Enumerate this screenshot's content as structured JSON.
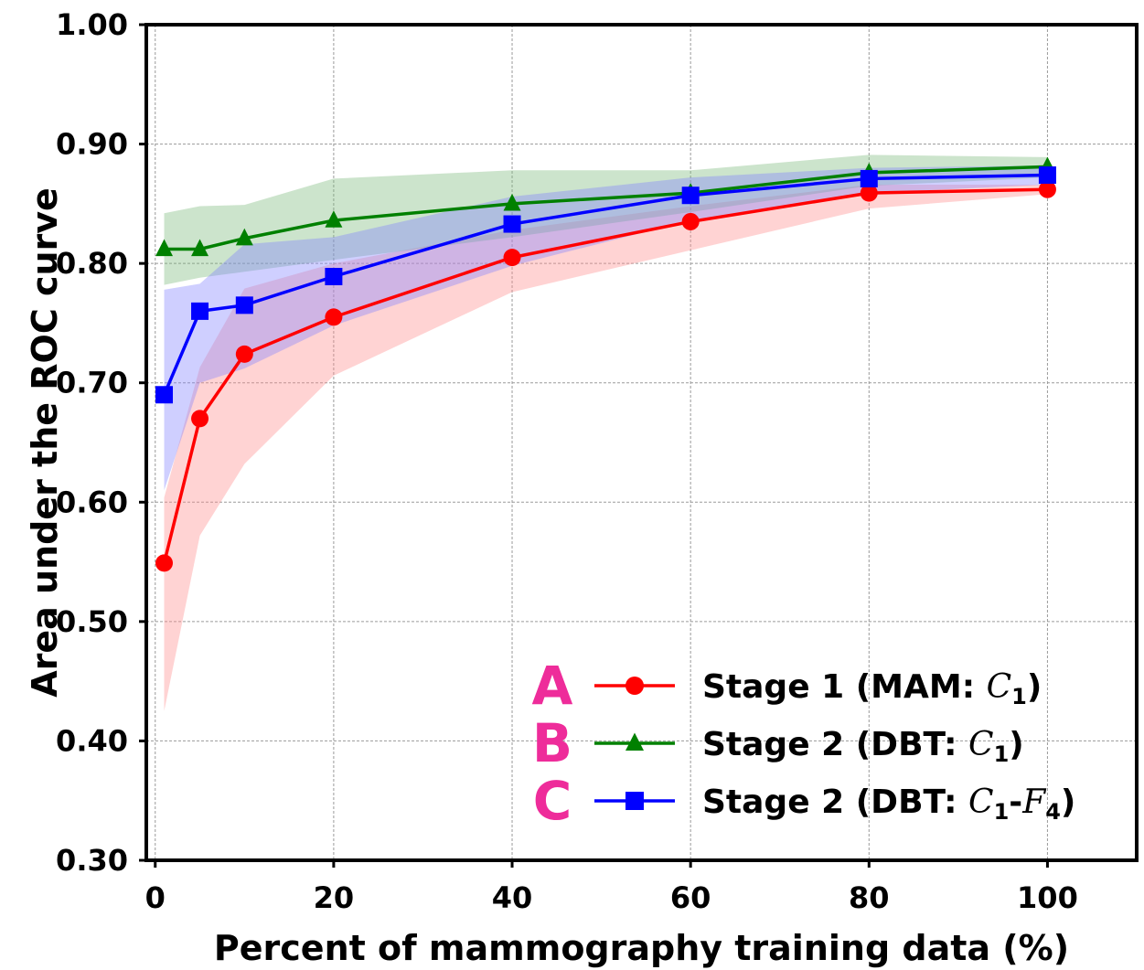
{
  "chart_data": {
    "type": "line",
    "x": [
      1,
      5,
      10,
      20,
      40,
      60,
      80,
      100
    ],
    "series": [
      {
        "name": "Stage 1 (MAM: C1)",
        "letter": "A",
        "color": "#ff0000",
        "band_color": "#ff8c8c",
        "marker": "circle",
        "values": [
          0.549,
          0.67,
          0.724,
          0.755,
          0.805,
          0.835,
          0.859,
          0.862
        ],
        "lower": [
          0.425,
          0.572,
          0.632,
          0.706,
          0.776,
          0.811,
          0.846,
          0.858
        ],
        "upper": [
          0.604,
          0.713,
          0.779,
          0.8,
          0.828,
          0.848,
          0.866,
          0.866
        ]
      },
      {
        "name": "Stage 2 (DBT: C1)",
        "letter": "B",
        "color": "#008000",
        "band_color": "#7ab97a",
        "marker": "triangle",
        "values": [
          0.812,
          0.812,
          0.821,
          0.836,
          0.85,
          0.859,
          0.876,
          0.881
        ],
        "lower": [
          0.782,
          0.788,
          0.793,
          0.803,
          0.822,
          0.843,
          0.865,
          0.872
        ],
        "upper": [
          0.842,
          0.848,
          0.849,
          0.871,
          0.878,
          0.878,
          0.891,
          0.889
        ]
      },
      {
        "name": "Stage 2 (DBT: C1-F4)",
        "letter": "C",
        "color": "#0000ff",
        "band_color": "#8080ff",
        "marker": "square",
        "values": [
          0.69,
          0.76,
          0.765,
          0.789,
          0.833,
          0.857,
          0.871,
          0.874
        ],
        "lower": [
          0.61,
          0.7,
          0.712,
          0.748,
          0.798,
          0.836,
          0.859,
          0.866
        ],
        "upper": [
          0.778,
          0.783,
          0.816,
          0.822,
          0.856,
          0.872,
          0.88,
          0.882
        ]
      }
    ],
    "xlabel": "Percent of mammography training data (%)",
    "ylabel": "Area under the ROC curve",
    "xlim": [
      -1,
      110
    ],
    "ylim": [
      0.3,
      1.0
    ],
    "xticks": [
      0,
      20,
      40,
      60,
      80,
      100
    ],
    "yticks": [
      0.3,
      0.4,
      0.5,
      0.6,
      0.7,
      0.8,
      0.9,
      1.0
    ],
    "xtick_labels": [
      "0",
      "20",
      "40",
      "60",
      "80",
      "100"
    ],
    "ytick_labels": [
      "0.30",
      "0.40",
      "0.50",
      "0.60",
      "0.70",
      "0.80",
      "0.90",
      "1.00"
    ],
    "grid": true,
    "legend_position": "lower-right",
    "shaded_band": true
  }
}
